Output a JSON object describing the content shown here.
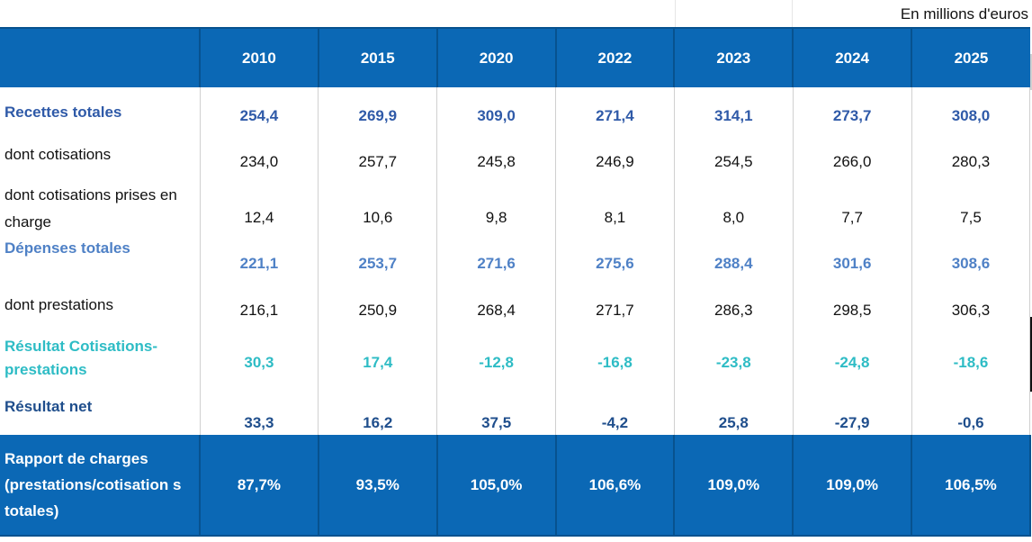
{
  "unit_note": "En millions d'euros",
  "years": [
    "2010",
    "2015",
    "2020",
    "2022",
    "2023",
    "2024",
    "2025"
  ],
  "rows": [
    {
      "label": "Recettes totales",
      "values": [
        "254,4",
        "269,9",
        "309,0",
        "271,4",
        "314,1",
        "273,7",
        "308,0"
      ]
    },
    {
      "label": "dont cotisations",
      "values": [
        "234,0",
        "257,7",
        "245,8",
        "246,9",
        "254,5",
        "266,0",
        "280,3"
      ]
    },
    {
      "label": "dont cotisations prises en charge",
      "values": [
        "12,4",
        "10,6",
        "9,8",
        "8,1",
        "8,0",
        "7,7",
        "7,5"
      ]
    },
    {
      "label": "Dépenses totales",
      "values": [
        "221,1",
        "253,7",
        "271,6",
        "275,6",
        "288,4",
        "301,6",
        "308,6"
      ]
    },
    {
      "label": "dont prestations",
      "values": [
        "216,1",
        "250,9",
        "268,4",
        "271,7",
        "286,3",
        "298,5",
        "306,3"
      ]
    },
    {
      "label": "Résultat Cotisations-prestations",
      "values": [
        "30,3",
        "17,4",
        "-12,8",
        "-16,8",
        "-23,8",
        "-24,8",
        "-18,6"
      ]
    },
    {
      "label": "Résultat net",
      "values": [
        "33,3",
        "16,2",
        "37,5",
        "-4,2",
        "25,8",
        "-27,9",
        "-0,6"
      ]
    },
    {
      "label": "Rapport de charges (prestations/cotisation s totales)",
      "values": [
        "87,7%",
        "93,5%",
        "105,0%",
        "106,6%",
        "109,0%",
        "109,0%",
        "106,5%"
      ]
    }
  ],
  "colors": {
    "header_bg": "#0b68b5",
    "recettes": "#2f5aa8",
    "depenses": "#4f81c6",
    "resultat_cp": "#2ebcc5",
    "resultat_net": "#1f4e8c"
  }
}
